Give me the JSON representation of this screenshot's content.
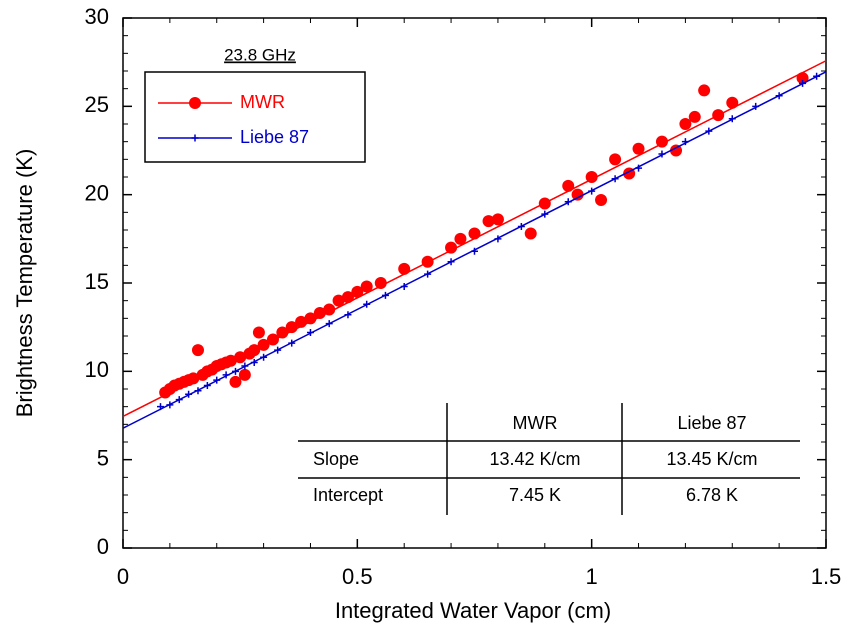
{
  "chart_data": {
    "type": "scatter",
    "xlabel": "Integrated Water Vapor (cm)",
    "ylabel": "Brightness Temperature (K)",
    "annotation": "23.8 GHz",
    "xlim": [
      0,
      1.5
    ],
    "xticks": [
      0,
      0.5,
      1,
      1.5
    ],
    "xminorticks": [
      0.1,
      0.2,
      0.3,
      0.4,
      0.6,
      0.7,
      0.8,
      0.9,
      1.1,
      1.2,
      1.3,
      1.4
    ],
    "ylim": [
      0,
      30
    ],
    "yticks": [
      0,
      5,
      10,
      15,
      20,
      25,
      30
    ],
    "yminorticks": [
      1,
      2,
      3,
      4,
      6,
      7,
      8,
      9,
      11,
      12,
      13,
      14,
      16,
      17,
      18,
      19,
      21,
      22,
      23,
      24,
      26,
      27,
      28,
      29
    ],
    "legend": "upper left",
    "series": [
      {
        "name": "MWR",
        "color": "#ff0000",
        "marker": "circle",
        "slope": 13.42,
        "intercept": 7.45,
        "x": [
          0.09,
          0.1,
          0.11,
          0.12,
          0.13,
          0.14,
          0.15,
          0.16,
          0.17,
          0.18,
          0.19,
          0.2,
          0.21,
          0.22,
          0.23,
          0.24,
          0.25,
          0.26,
          0.27,
          0.28,
          0.29,
          0.3,
          0.32,
          0.34,
          0.36,
          0.38,
          0.4,
          0.42,
          0.44,
          0.46,
          0.48,
          0.5,
          0.52,
          0.55,
          0.6,
          0.65,
          0.7,
          0.72,
          0.75,
          0.78,
          0.8,
          0.87,
          0.9,
          0.95,
          0.97,
          1.0,
          1.02,
          1.05,
          1.08,
          1.1,
          1.15,
          1.18,
          1.2,
          1.22,
          1.24,
          1.27,
          1.3,
          1.45
        ],
        "values": [
          8.8,
          9.0,
          9.2,
          9.3,
          9.4,
          9.5,
          9.6,
          11.2,
          9.8,
          10.0,
          10.1,
          10.3,
          10.4,
          10.5,
          10.6,
          9.4,
          10.8,
          9.8,
          11.0,
          11.2,
          12.2,
          11.5,
          11.8,
          12.2,
          12.5,
          12.8,
          13.0,
          13.3,
          13.5,
          14.0,
          14.2,
          14.5,
          14.8,
          15.0,
          15.8,
          16.2,
          17.0,
          17.5,
          17.8,
          18.5,
          18.6,
          17.8,
          19.5,
          20.5,
          20.0,
          21.0,
          19.7,
          22.0,
          21.2,
          22.6,
          23.0,
          22.5,
          24.0,
          24.4,
          25.9,
          24.5,
          25.2,
          26.6
        ]
      },
      {
        "name": "Liebe 87",
        "color": "#0000cc",
        "marker": "plus",
        "slope": 13.45,
        "intercept": 6.78,
        "x": [
          0.08,
          0.1,
          0.12,
          0.14,
          0.16,
          0.18,
          0.2,
          0.22,
          0.24,
          0.26,
          0.28,
          0.3,
          0.33,
          0.36,
          0.4,
          0.44,
          0.48,
          0.52,
          0.56,
          0.6,
          0.65,
          0.7,
          0.75,
          0.8,
          0.85,
          0.9,
          0.95,
          1.0,
          1.05,
          1.1,
          1.15,
          1.2,
          1.25,
          1.3,
          1.35,
          1.4,
          1.45,
          1.48
        ],
        "values": [
          8.0,
          8.1,
          8.4,
          8.7,
          8.9,
          9.2,
          9.5,
          9.8,
          10.0,
          10.3,
          10.5,
          10.8,
          11.2,
          11.6,
          12.2,
          12.7,
          13.2,
          13.8,
          14.3,
          14.8,
          15.5,
          16.2,
          16.8,
          17.5,
          18.2,
          18.9,
          19.6,
          20.2,
          20.9,
          21.5,
          22.3,
          23.0,
          23.6,
          24.3,
          25.0,
          25.6,
          26.3,
          26.7
        ]
      }
    ],
    "table": {
      "header": [
        "MWR",
        "Liebe 87"
      ],
      "rows": [
        {
          "label": "Slope",
          "cells": [
            "13.42 K/cm",
            "13.45 K/cm"
          ]
        },
        {
          "label": "Intercept",
          "cells": [
            "7.45 K",
            "6.78 K"
          ]
        }
      ]
    }
  }
}
